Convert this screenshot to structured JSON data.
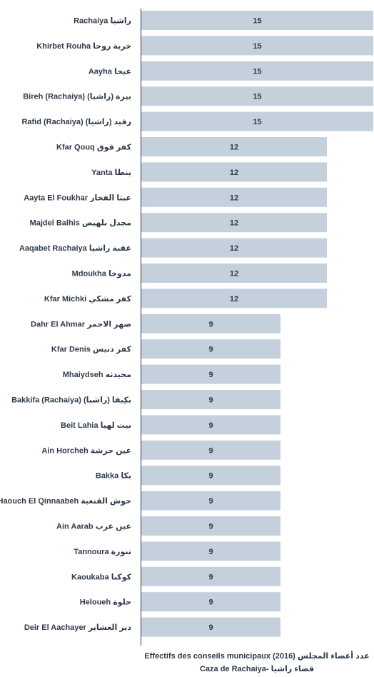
{
  "chart_data": {
    "type": "bar",
    "orientation": "horizontal",
    "categories": [
      "Rachaiya راشيا",
      "Khirbet Rouha خربة روحا",
      "Aayha عيحا",
      "Bireh (Rachaiya) بيرة (راشيا)",
      "Rafid (Rachaiya) رفيد (راشيا)",
      "Kfar Qouq كفر قوق",
      "Yanta ينطا",
      "Aayta El Foukhar عيتا الفخار",
      "Majdel Balhis مجدل بلهيص",
      "Aaqabet Rachaiya عقبة راشيا",
      "Mdoukha مدوخا",
      "Kfar Michki كفر مشكي",
      "Dahr El Ahmar ضهر الاحمر",
      "Kfar Denis كفر دنيس",
      "Mhaiydseh محيدثه",
      "Bakkifa (Rachaiya) بكِيفا (راشيا)",
      "Beit Lahia بيت لهيا",
      "Ain Horcheh عين حرشة",
      "Bakka بكا",
      "Haouch El Qinnaabeh حوش القنعبة",
      "Ain Aarab عين عرب",
      "Tannoura تنورة",
      "Kaoukaba كوكبا",
      "Heloueh حلوة",
      "Deir El Aachayer دير العشاير"
    ],
    "values": [
      15,
      15,
      15,
      15,
      15,
      12,
      12,
      12,
      12,
      12,
      12,
      12,
      9,
      9,
      9,
      9,
      9,
      9,
      9,
      9,
      9,
      9,
      9,
      9,
      9
    ],
    "xlim": [
      0,
      15
    ],
    "bar_color": "#c5d0dd",
    "axis_color": "#2f3b4a",
    "grid": false,
    "caption_line1": "Effectifs des conseils municipaux (2016) عدد أعضاء المجلس",
    "caption_line2": "Caza de Rachaiya- قضاء راشيا"
  }
}
